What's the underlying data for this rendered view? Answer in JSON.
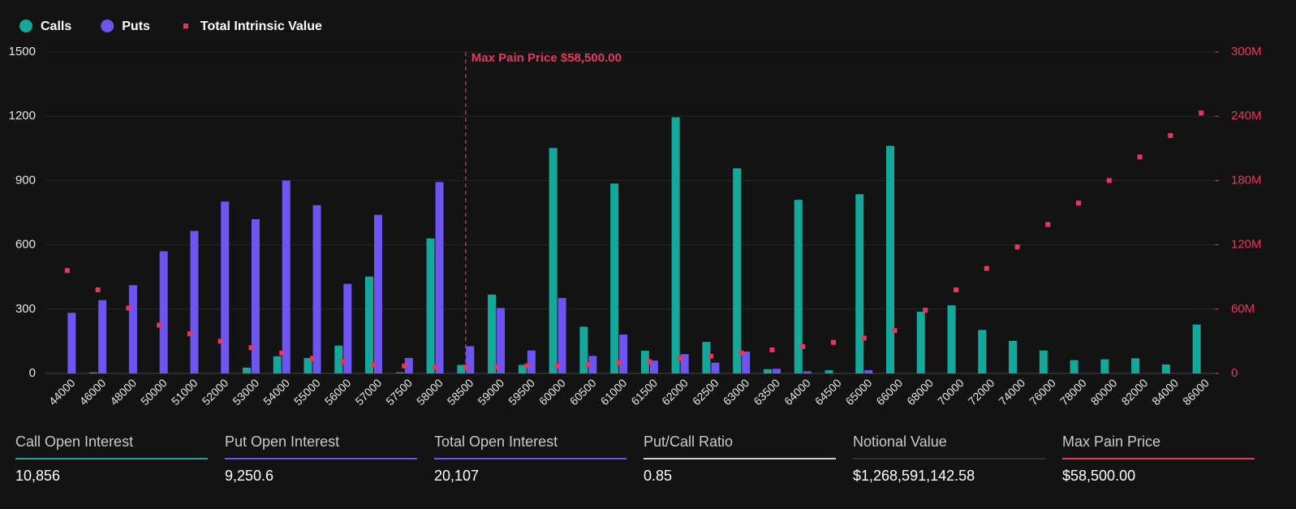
{
  "chart_data": {
    "type": "bar",
    "categories": [
      "44000",
      "46000",
      "48000",
      "50000",
      "51000",
      "52000",
      "53000",
      "54000",
      "55000",
      "56000",
      "57000",
      "57500",
      "58000",
      "58500",
      "59000",
      "59500",
      "60000",
      "60500",
      "61000",
      "61500",
      "62000",
      "62500",
      "63000",
      "63500",
      "64000",
      "64500",
      "65000",
      "66000",
      "68000",
      "70000",
      "72000",
      "74000",
      "76000",
      "78000",
      "80000",
      "82000",
      "84000",
      "86000"
    ],
    "series": [
      {
        "name": "Calls",
        "type": "bar",
        "color": "#14a89a",
        "values": [
          0,
          5,
          0,
          0,
          0,
          0,
          27,
          80,
          72,
          130,
          452,
          5,
          630,
          40,
          368,
          40,
          1052,
          218,
          886,
          106,
          1195,
          147,
          957,
          20,
          810,
          15,
          836,
          1062,
          288,
          318,
          203,
          152,
          107,
          62,
          66,
          71,
          42,
          228
        ]
      },
      {
        "name": "Puts",
        "type": "bar",
        "color": "#6e54f0",
        "values": [
          283,
          342,
          412,
          570,
          665,
          802,
          720,
          900,
          785,
          418,
          740,
          72,
          893,
          127,
          305,
          107,
          352,
          82,
          181,
          60,
          90,
          50,
          102,
          22,
          10,
          0,
          15,
          0,
          0,
          0,
          0,
          0,
          0,
          0,
          0,
          0,
          0,
          0
        ]
      },
      {
        "name": "Total Intrinsic Value",
        "type": "scatter",
        "axis": "y2",
        "color": "#e8365d",
        "values": [
          96000000,
          78000000,
          61000000,
          45000000,
          37000000,
          30000000,
          24000000,
          19000000,
          14000000,
          11000000,
          8000000,
          7000000,
          6000000,
          6000000,
          6000000,
          7000000,
          7000000,
          8000000,
          10000000,
          11000000,
          14000000,
          16000000,
          19000000,
          22000000,
          25000000,
          29000000,
          33000000,
          40000000,
          59000000,
          78000000,
          98000000,
          118000000,
          139000000,
          159000000,
          180000000,
          202000000,
          222000000,
          243000000
        ]
      }
    ],
    "ylim": [
      0,
      1500
    ],
    "yticks": [
      0,
      300,
      600,
      900,
      1200,
      1500
    ],
    "y2lim": [
      0,
      300000000
    ],
    "y2ticks": [
      {
        "value": 0,
        "label": "0"
      },
      {
        "value": 60000000,
        "label": "60M"
      },
      {
        "value": 120000000,
        "label": "120M"
      },
      {
        "value": 180000000,
        "label": "180M"
      },
      {
        "value": 240000000,
        "label": "240M"
      },
      {
        "value": 300000000,
        "label": "300M"
      }
    ],
    "grid": true,
    "legend": "top-left",
    "annotation": {
      "text": "Max Pain Price $58,500.00",
      "at": "58500",
      "color": "#e8365d"
    }
  },
  "stats": [
    {
      "label": "Call Open Interest",
      "value": "10,856",
      "color": "#14a89a"
    },
    {
      "label": "Put Open Interest",
      "value": "9,250.6",
      "color": "#6e54f0"
    },
    {
      "label": "Total Open Interest",
      "value": "20,107",
      "color": "#6e54f0"
    },
    {
      "label": "Put/Call Ratio",
      "value": "0.85",
      "color": "#d0d0d0"
    },
    {
      "label": "Notional Value",
      "value": "$1,268,591,142.58",
      "color": "#333333"
    },
    {
      "label": "Max Pain Price",
      "value": "$58,500.00",
      "color": "#e8365d"
    }
  ]
}
